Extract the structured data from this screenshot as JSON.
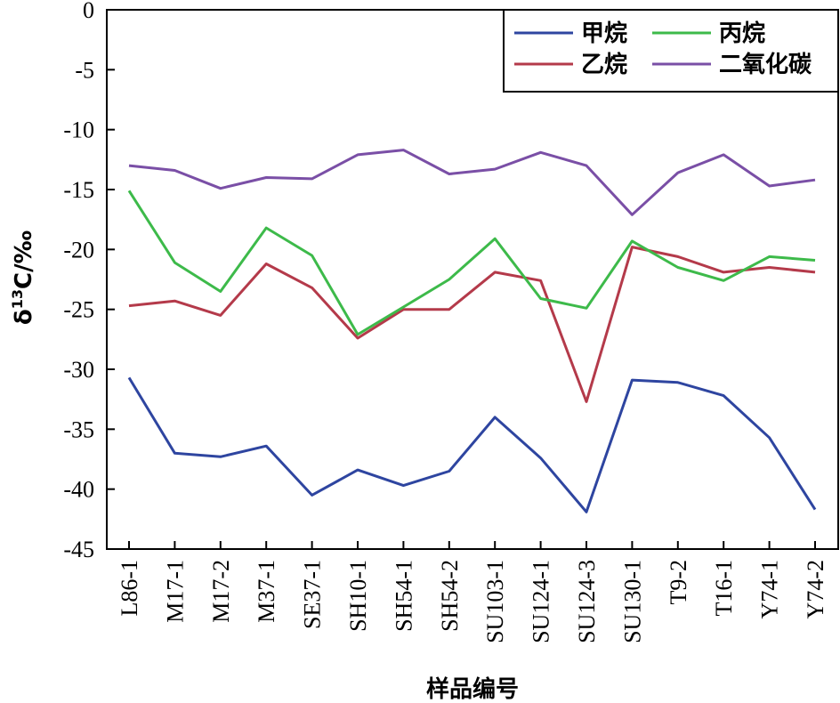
{
  "chart_data": {
    "type": "line",
    "categories": [
      "L86-1",
      "M17-1",
      "M17-2",
      "M37-1",
      "SE37-1",
      "SH10-1",
      "SH54-1",
      "SH54-2",
      "SU103-1",
      "SU124-1",
      "SU124-3",
      "SU130-1",
      "T9-2",
      "T16-1",
      "Y74-1",
      "Y74-2"
    ],
    "xlabel": "样品编号",
    "ylabel_main": "δ",
    "ylabel_sup": "13",
    "ylabel_rest": "C/‰",
    "ylim": [
      -45,
      0
    ],
    "yticks": [
      0,
      -5,
      -10,
      -15,
      -20,
      -25,
      -30,
      -35,
      -40,
      -45
    ],
    "grid": false,
    "legend_position": "top-right",
    "series": [
      {
        "name": "甲烷",
        "color": "#2e45a0",
        "values": [
          -30.7,
          -37.0,
          -37.3,
          -36.4,
          -40.5,
          -38.4,
          -39.7,
          -38.5,
          -34.0,
          -37.4,
          -41.9,
          -30.9,
          -31.1,
          -32.2,
          -35.7,
          -41.7
        ]
      },
      {
        "name": "乙烷",
        "color": "#b43a4a",
        "values": [
          -24.7,
          -24.3,
          -25.5,
          -21.2,
          -23.2,
          -27.4,
          -25.0,
          -25.0,
          -21.9,
          -22.6,
          -32.7,
          -19.8,
          -20.6,
          -21.9,
          -21.5,
          -21.9
        ]
      },
      {
        "name": "丙烷",
        "color": "#3dba4a",
        "values": [
          -15.1,
          -21.1,
          -23.5,
          -18.2,
          -20.5,
          -27.1,
          -24.8,
          -22.5,
          -19.1,
          -24.1,
          -24.9,
          -19.3,
          -21.5,
          -22.6,
          -20.6,
          -20.9
        ]
      },
      {
        "name": "二氧化碳",
        "color": "#7a4fa6",
        "values": [
          -13.0,
          -13.4,
          -14.9,
          -14.0,
          -14.1,
          -12.1,
          -11.7,
          -13.7,
          -13.3,
          -11.9,
          -13.0,
          -17.1,
          -13.6,
          -12.1,
          -14.7,
          -14.2
        ]
      }
    ]
  }
}
